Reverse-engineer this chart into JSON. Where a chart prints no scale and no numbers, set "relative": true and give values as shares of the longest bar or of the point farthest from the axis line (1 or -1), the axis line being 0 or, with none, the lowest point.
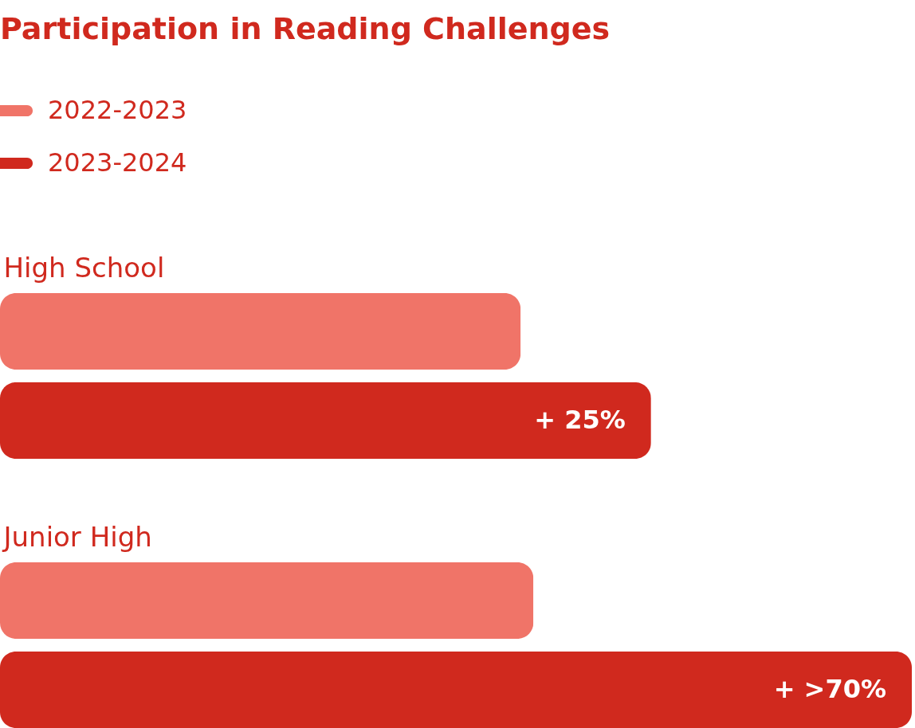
{
  "chart_data": {
    "type": "bar",
    "orientation": "horizontal",
    "relative": true,
    "title": "Participation in Reading Challenges",
    "categories": [
      "High School",
      "Junior High"
    ],
    "legend": "top left",
    "series": [
      {
        "name": "2022-2023",
        "color": "#f07468",
        "values": [
          0.571,
          0.585
        ]
      },
      {
        "name": "2023-2024",
        "color": "#d0291e",
        "values": [
          0.714,
          1
        ]
      }
    ],
    "annotations": [
      {
        "text": "+ 25%",
        "x": 0.714,
        "y": "High School"
      },
      {
        "text": "+ >70%",
        "x": 1,
        "y": "Junior High"
      }
    ]
  }
}
